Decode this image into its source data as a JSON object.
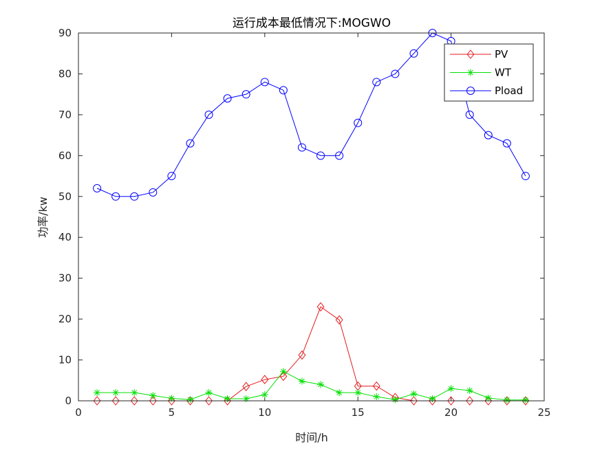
{
  "chart_data": {
    "type": "line",
    "title": "运行成本最低情况下:MOGWO",
    "xlabel": "时间/h",
    "ylabel": "功率/kw",
    "xlim": [
      0,
      25
    ],
    "ylim": [
      0,
      90
    ],
    "xticks": [
      0,
      5,
      10,
      15,
      20,
      25
    ],
    "yticks": [
      0,
      10,
      20,
      30,
      40,
      50,
      60,
      70,
      80,
      90
    ],
    "grid": false,
    "legend_position": "top-right",
    "x": [
      1,
      2,
      3,
      4,
      5,
      6,
      7,
      8,
      9,
      10,
      11,
      12,
      13,
      14,
      15,
      16,
      17,
      18,
      19,
      20,
      21,
      22,
      23,
      24
    ],
    "series": [
      {
        "name": "PV",
        "color": "#e41a1c",
        "marker": "diamond",
        "values": [
          0,
          0,
          0,
          0,
          0,
          0,
          0,
          0,
          3.5,
          5.2,
          6.0,
          11.2,
          23.0,
          19.8,
          3.6,
          3.6,
          0.8,
          0,
          0,
          0,
          0,
          0,
          0,
          0
        ]
      },
      {
        "name": "WT",
        "color": "#00e000",
        "marker": "asterisk",
        "values": [
          2.0,
          2.0,
          2.0,
          1.3,
          0.6,
          0.3,
          2.0,
          0.5,
          0.5,
          1.5,
          7.2,
          4.8,
          4.0,
          2.0,
          2.0,
          1.0,
          0.3,
          1.7,
          0.5,
          3.0,
          2.5,
          0.7,
          0.2,
          0.2
        ]
      },
      {
        "name": "Pload",
        "color": "#0000ff",
        "marker": "circle",
        "values": [
          52,
          50,
          50,
          51,
          55,
          63,
          70,
          74,
          75,
          78,
          76,
          62,
          60,
          60,
          68,
          78,
          80,
          85,
          90,
          88,
          70,
          65,
          63,
          55
        ]
      }
    ]
  }
}
